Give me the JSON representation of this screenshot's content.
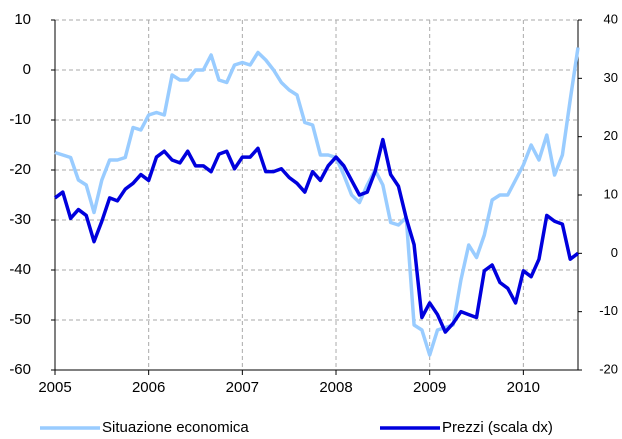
{
  "chart_data": {
    "type": "line",
    "categories": [
      "2005",
      null,
      null,
      null,
      null,
      null,
      null,
      null,
      null,
      null,
      null,
      null,
      "2006",
      null,
      null,
      null,
      null,
      null,
      null,
      null,
      null,
      null,
      null,
      null,
      "2007",
      null,
      null,
      null,
      null,
      null,
      null,
      null,
      null,
      null,
      null,
      null,
      "2008",
      null,
      null,
      null,
      null,
      null,
      null,
      null,
      null,
      null,
      null,
      null,
      "2009",
      null,
      null,
      null,
      null,
      null,
      null,
      null,
      null,
      null,
      null,
      null,
      "2010",
      null,
      null,
      null,
      null,
      null,
      null,
      null
    ],
    "series": [
      {
        "name": "Situazione economica",
        "color": "#99ccff",
        "values": [
          -16.5,
          -17,
          -17.5,
          -22,
          -23,
          -28.5,
          -22,
          -18,
          -18,
          -17.5,
          -11.5,
          -12,
          -9,
          -8.5,
          -9,
          -1,
          -2,
          -2,
          0,
          0,
          3,
          -2,
          -2.5,
          1,
          1.5,
          1,
          3.5,
          2,
          0,
          -2.5,
          -4,
          -5,
          -10.5,
          -11,
          -17,
          -17,
          -17.5,
          -21,
          -25,
          -26.5,
          -23,
          -20,
          -23,
          -30.5,
          -31,
          -29.5,
          -51,
          -52,
          -57,
          -52,
          -51.5,
          -51,
          -42,
          -35,
          -37.5,
          -33,
          -26,
          -25,
          -25,
          -22,
          -19,
          -15,
          -18,
          -13,
          -21,
          -17,
          -6,
          4.5
        ]
      },
      {
        "name": "Prezzi (scala dx)",
        "color": "#0000dd",
        "axis": "y2",
        "values": [
          9.5,
          10.5,
          6,
          7.5,
          6.5,
          2,
          5.5,
          9.5,
          9,
          11,
          12,
          13.5,
          12.5,
          16.5,
          17.5,
          16,
          15.5,
          17.5,
          15,
          15,
          14,
          17,
          17.5,
          14.5,
          16.5,
          16.5,
          18,
          14,
          14,
          14.5,
          13,
          12,
          10.5,
          14,
          12.5,
          15,
          16.5,
          15,
          12.5,
          10,
          10.5,
          14,
          19.5,
          13.5,
          11.5,
          6,
          1.5,
          -11,
          -8.5,
          -10.5,
          -13.5,
          -12,
          -10,
          -10.5,
          -11,
          -3,
          -2,
          -5,
          -6,
          -8.5,
          -3,
          -4,
          -1,
          6.5,
          5.5,
          5,
          -1,
          0
        ]
      }
    ],
    "ylim": [
      -60,
      10
    ],
    "yticks": [
      10,
      0,
      -10,
      -20,
      -30,
      -40,
      -50,
      -60
    ],
    "y2lim": [
      -20,
      40
    ],
    "y2ticks": [
      40,
      30,
      20,
      10,
      0,
      -10,
      -20
    ],
    "grid": true,
    "legend": "bottom"
  }
}
